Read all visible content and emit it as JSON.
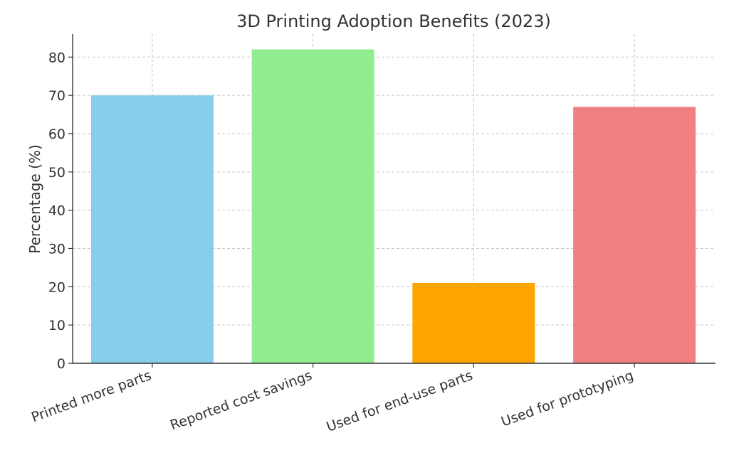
{
  "chart_data": {
    "type": "bar",
    "title": "3D Printing Adoption Benefits (2023)",
    "xlabel": "",
    "ylabel": "Percentage (%)",
    "categories": [
      "Printed more parts",
      "Reported cost savings",
      "Used for end-use parts",
      "Used for prototyping"
    ],
    "values": [
      70,
      82,
      21,
      67
    ],
    "colors": [
      "#87ceeb",
      "#90ee90",
      "#ffa500",
      "#f08080"
    ],
    "ylim": [
      0,
      86
    ],
    "yticks": [
      0,
      10,
      20,
      30,
      40,
      50,
      60,
      70,
      80
    ],
    "grid": true,
    "legend": "none"
  }
}
